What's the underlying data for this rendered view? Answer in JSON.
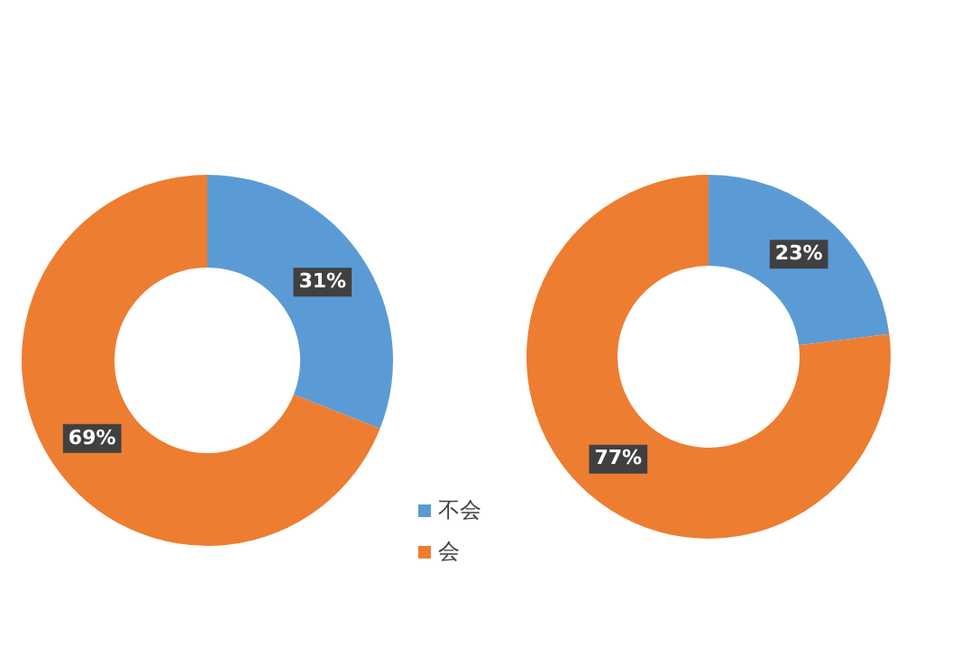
{
  "chart_data": [
    {
      "type": "donut",
      "categories": [
        "不会",
        "会"
      ],
      "values": [
        31,
        69
      ],
      "colors": [
        "#5b9bd5",
        "#ed7d31"
      ],
      "value_labels": [
        "31%",
        "69%"
      ],
      "legend": "bottom right"
    },
    {
      "type": "donut",
      "categories": [
        null,
        null
      ],
      "values": [
        23,
        77
      ],
      "colors": [
        "#5b9bd5",
        "#ed7d31"
      ],
      "value_labels": [
        "23%",
        "77%"
      ]
    }
  ]
}
